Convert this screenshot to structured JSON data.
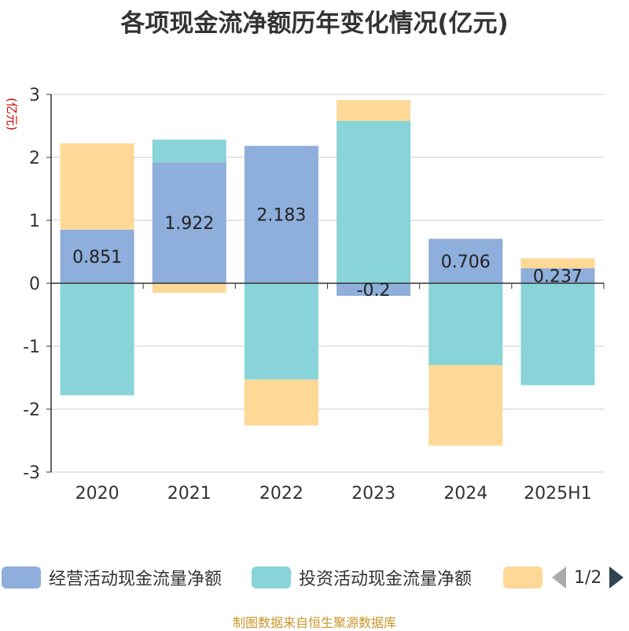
{
  "chart_data": {
    "type": "bar",
    "stacked": true,
    "title": "各项现金流净额历年变化情况(亿元)",
    "ylabel": "(亿元)",
    "categories": [
      "2020",
      "2021",
      "2022",
      "2023",
      "2024",
      "2025H1"
    ],
    "ylim": [
      -3,
      3
    ],
    "yticks": [
      "3",
      "2",
      "1",
      "0",
      "-1",
      "-2",
      "-3"
    ],
    "grid": true,
    "legend_position": "bottom",
    "series": [
      {
        "name": "经营活动现金流量净额",
        "color": "#8eaedb",
        "values": [
          0.851,
          1.922,
          2.183,
          -0.2,
          0.706,
          0.237
        ],
        "labels": [
          "0.851",
          "1.922",
          "2.183",
          "-0.2",
          "0.706",
          "0.237"
        ]
      },
      {
        "name": "投资活动现金流量净额",
        "color": "#88d4d8",
        "values": [
          -1.78,
          0.36,
          -1.53,
          2.58,
          -1.3,
          -1.62
        ]
      },
      {
        "name": "",
        "color": "#fdd897",
        "values": [
          1.37,
          -0.15,
          -0.73,
          0.33,
          -1.28,
          0.16
        ]
      }
    ]
  },
  "legend": {
    "items": [
      {
        "label": "经营活动现金流量净额",
        "color": "#8eaedb"
      },
      {
        "label": "投资活动现金流量净额",
        "color": "#88d4d8"
      },
      {
        "label": "",
        "color": "#fdd897"
      }
    ],
    "page": "1/2"
  },
  "source": "制图数据来自恒生聚源数据库"
}
